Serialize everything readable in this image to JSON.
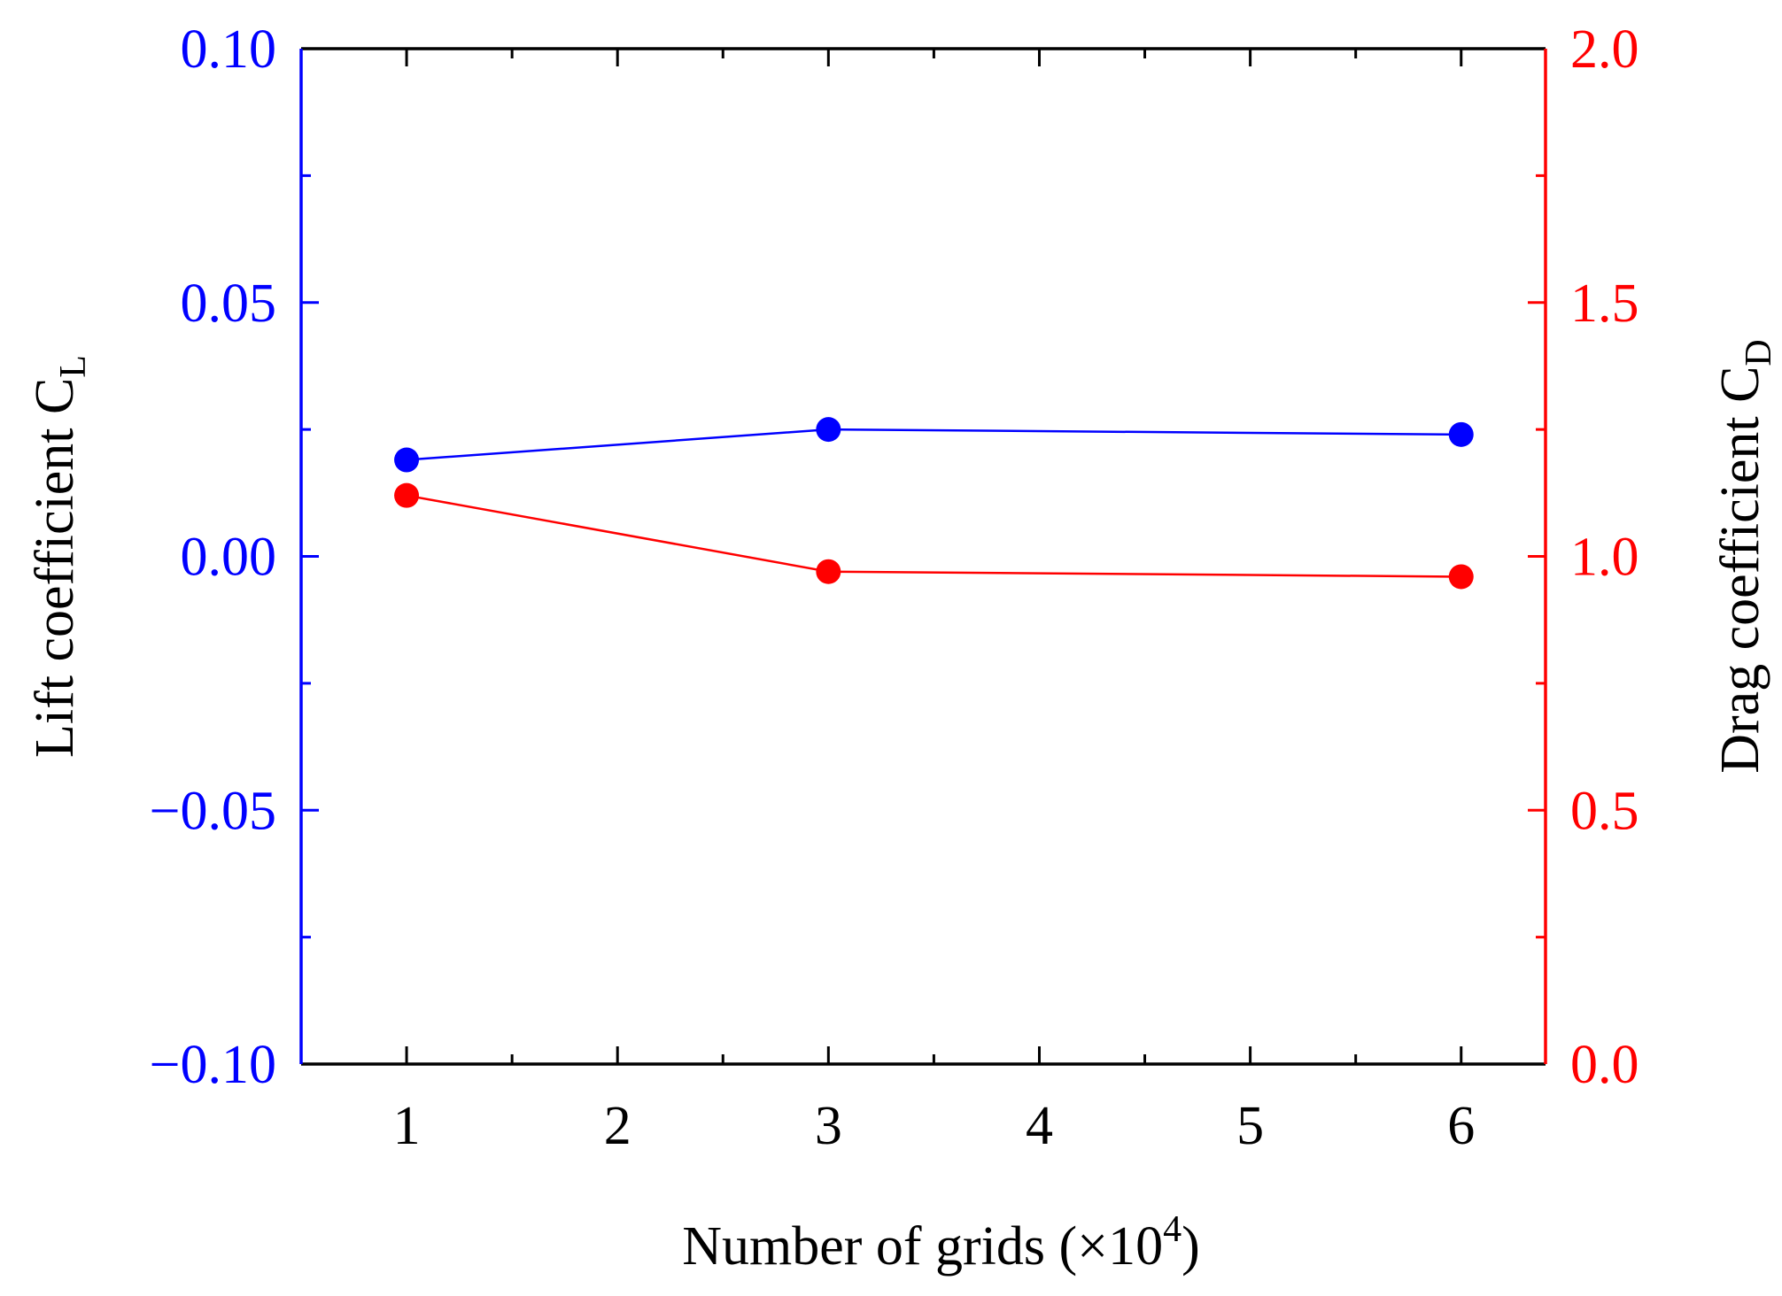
{
  "chart_data": {
    "type": "line",
    "xlabel": {
      "prefix": "Number of grids (×10",
      "superscript": "4",
      "suffix": ")"
    },
    "ylabel_left": {
      "text": "Lift coefficient C",
      "subscript": "L"
    },
    "ylabel_right": {
      "text": "Drag coefficient C",
      "subscript": "D"
    },
    "x_ticks": [
      1,
      2,
      3,
      4,
      5,
      6
    ],
    "x_tick_labels": [
      "1",
      "2",
      "3",
      "4",
      "5",
      "6"
    ],
    "xlim": [
      0.5,
      6.4
    ],
    "y_left": {
      "lim": [
        -0.1,
        0.1
      ],
      "ticks": [
        -0.1,
        -0.05,
        0.0,
        0.05,
        0.1
      ],
      "tick_labels": [
        "−0.10",
        "−0.05",
        "0.00",
        "0.05",
        "0.10"
      ],
      "color": "#0000ff"
    },
    "y_right": {
      "lim": [
        0.0,
        2.0
      ],
      "ticks": [
        0.0,
        0.5,
        1.0,
        1.5,
        2.0
      ],
      "tick_labels": [
        "0.0",
        "0.5",
        "1.0",
        "1.5",
        "2.0"
      ],
      "color": "#ff0000"
    },
    "series": [
      {
        "axis": "left",
        "color": "#0000ff",
        "x": [
          1,
          3,
          6
        ],
        "y": [
          0.019,
          0.025,
          0.024
        ]
      },
      {
        "axis": "right",
        "color": "#ff0000",
        "x": [
          1,
          3,
          6
        ],
        "y": [
          1.12,
          0.97,
          0.96
        ]
      }
    ],
    "grid": false,
    "legend": "none"
  }
}
